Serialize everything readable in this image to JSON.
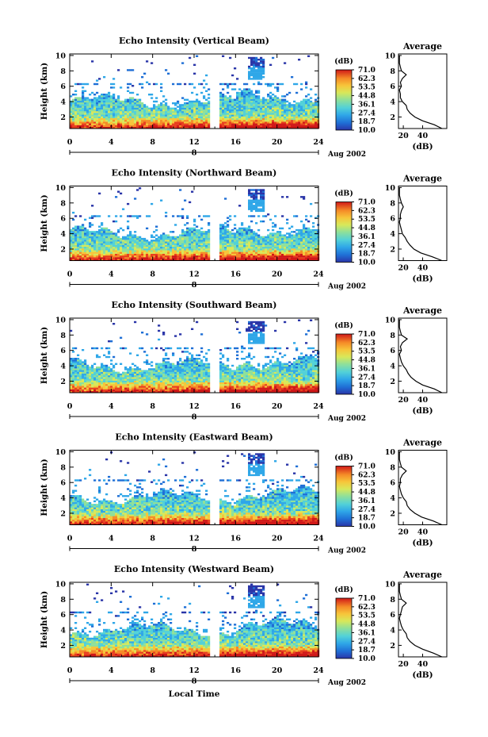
{
  "figure": {
    "xlabel": "Local Time",
    "date_label": "Aug 2002",
    "day_marker": "8",
    "avg_title": "Average",
    "avg_xlabel": "(dB)",
    "colorbar_title": "(dB)",
    "colors": [
      "#2a35a8",
      "#1f6fd6",
      "#2fa7e8",
      "#52d1d8",
      "#8fe09a",
      "#d8e85a",
      "#f7c53a",
      "#f58a27",
      "#e8401f",
      "#d01818"
    ]
  },
  "chart_data": [
    {
      "type": "heatmap",
      "title": "Echo Intensity (Vertical Beam)",
      "xlabel": "",
      "ylabel": "Height (km)",
      "x_ticks": [
        0,
        4,
        8,
        12,
        16,
        20,
        24
      ],
      "y_ticks": [
        2,
        4,
        6,
        8,
        10
      ],
      "xlim": [
        0,
        24
      ],
      "ylim": [
        0.5,
        10.2
      ],
      "data_gap_hours": [
        13.7,
        14.3
      ],
      "colorbar_ticks": [
        "71.0",
        "62.3",
        "53.5",
        "44.8",
        "36.1",
        "27.4",
        "18.7",
        "10.0"
      ],
      "average_profile": {
        "xlabel": "(dB)",
        "x_ticks": [
          20,
          40
        ],
        "xlim": [
          15,
          65
        ],
        "heights": [
          0.5,
          1,
          1.5,
          2,
          2.5,
          3,
          3.5,
          4,
          4.5,
          5,
          5.5,
          6,
          6.5,
          7,
          7.5,
          8,
          8.5,
          9,
          9.5,
          10
        ],
        "values": [
          60,
          52,
          40,
          32,
          27,
          24,
          23,
          19,
          17,
          17,
          16,
          18,
          17,
          19,
          23,
          18,
          17,
          16,
          16,
          16
        ]
      }
    },
    {
      "type": "heatmap",
      "title": "Echo Intensity (Northward Beam)",
      "xlabel": "",
      "ylabel": "Height (km)",
      "x_ticks": [
        0,
        4,
        8,
        12,
        16,
        20,
        24
      ],
      "y_ticks": [
        2,
        4,
        6,
        8,
        10
      ],
      "xlim": [
        0,
        24
      ],
      "ylim": [
        0.5,
        10.2
      ],
      "data_gap_hours": [
        13.7,
        14.3
      ],
      "colorbar_ticks": [
        "71.0",
        "62.3",
        "53.5",
        "44.8",
        "36.1",
        "27.4",
        "18.7",
        "10.0"
      ],
      "average_profile": {
        "xlabel": "(dB)",
        "x_ticks": [
          20,
          40
        ],
        "xlim": [
          15,
          65
        ],
        "heights": [
          0.5,
          1,
          1.5,
          2,
          2.5,
          3,
          3.5,
          4,
          4.5,
          5,
          5.5,
          6,
          6.5,
          7,
          7.5,
          8,
          8.5,
          9,
          9.5,
          10
        ],
        "values": [
          60,
          50,
          38,
          31,
          27,
          24,
          22,
          19,
          18,
          17,
          16,
          17,
          17,
          18,
          20,
          18,
          17,
          16,
          16,
          16
        ]
      }
    },
    {
      "type": "heatmap",
      "title": "Echo Intensity (Southward Beam)",
      "xlabel": "",
      "ylabel": "Height (km)",
      "x_ticks": [
        0,
        4,
        8,
        12,
        16,
        20,
        24
      ],
      "y_ticks": [
        2,
        4,
        6,
        8,
        10
      ],
      "xlim": [
        0,
        24
      ],
      "ylim": [
        0.5,
        10.2
      ],
      "data_gap_hours": [
        13.7,
        14.3
      ],
      "colorbar_ticks": [
        "71.0",
        "62.3",
        "53.5",
        "44.8",
        "36.1",
        "27.4",
        "18.7",
        "10.0"
      ],
      "average_profile": {
        "xlabel": "(dB)",
        "x_ticks": [
          20,
          40
        ],
        "xlim": [
          15,
          65
        ],
        "heights": [
          0.5,
          1,
          1.5,
          2,
          2.5,
          3,
          3.5,
          4,
          4.5,
          5,
          5.5,
          6,
          6.5,
          7,
          7.5,
          8,
          8.5,
          9,
          9.5,
          10
        ],
        "values": [
          60,
          52,
          40,
          33,
          28,
          25,
          23,
          20,
          18,
          17,
          16,
          18,
          17,
          19,
          24,
          18,
          17,
          16,
          16,
          16
        ]
      }
    },
    {
      "type": "heatmap",
      "title": "Echo Intensity (Eastward Beam)",
      "xlabel": "",
      "ylabel": "Height (km)",
      "x_ticks": [
        0,
        4,
        8,
        12,
        16,
        20,
        24
      ],
      "y_ticks": [
        2,
        4,
        6,
        8,
        10
      ],
      "xlim": [
        0,
        24
      ],
      "ylim": [
        0.5,
        10.2
      ],
      "data_gap_hours": [
        13.7,
        14.3
      ],
      "colorbar_ticks": [
        "71.0",
        "62.3",
        "53.5",
        "44.8",
        "36.1",
        "27.4",
        "18.7",
        "10.0"
      ],
      "average_profile": {
        "xlabel": "(dB)",
        "x_ticks": [
          20,
          40
        ],
        "xlim": [
          15,
          65
        ],
        "heights": [
          0.5,
          1,
          1.5,
          2,
          2.5,
          3,
          3.5,
          4,
          4.5,
          5,
          5.5,
          6,
          6.5,
          7,
          7.5,
          8,
          8.5,
          9,
          9.5,
          10
        ],
        "values": [
          60,
          51,
          39,
          32,
          27,
          24,
          23,
          20,
          18,
          17,
          16,
          17,
          17,
          19,
          23,
          18,
          17,
          16,
          16,
          16
        ]
      }
    },
    {
      "type": "heatmap",
      "title": "Echo Intensity (Westward Beam)",
      "xlabel": "Local Time",
      "ylabel": "Height (km)",
      "x_ticks": [
        0,
        4,
        8,
        12,
        16,
        20,
        24
      ],
      "y_ticks": [
        2,
        4,
        6,
        8,
        10
      ],
      "xlim": [
        0,
        24
      ],
      "ylim": [
        0.5,
        10.2
      ],
      "data_gap_hours": [
        13.7,
        14.3
      ],
      "colorbar_ticks": [
        "71.0",
        "62.3",
        "53.5",
        "44.8",
        "36.1",
        "27.4",
        "18.7",
        "10.0"
      ],
      "average_profile": {
        "xlabel": "(dB)",
        "x_ticks": [
          20,
          40
        ],
        "xlim": [
          15,
          65
        ],
        "heights": [
          0.5,
          1,
          1.5,
          2,
          2.5,
          3,
          3.5,
          4,
          4.5,
          5,
          5.5,
          6,
          6.5,
          7,
          7.5,
          8,
          8.5,
          9,
          9.5,
          10
        ],
        "values": [
          60,
          51,
          40,
          32,
          27,
          24,
          23,
          20,
          18,
          17,
          16,
          17,
          18,
          19,
          23,
          18,
          17,
          16,
          16,
          16
        ]
      }
    }
  ]
}
